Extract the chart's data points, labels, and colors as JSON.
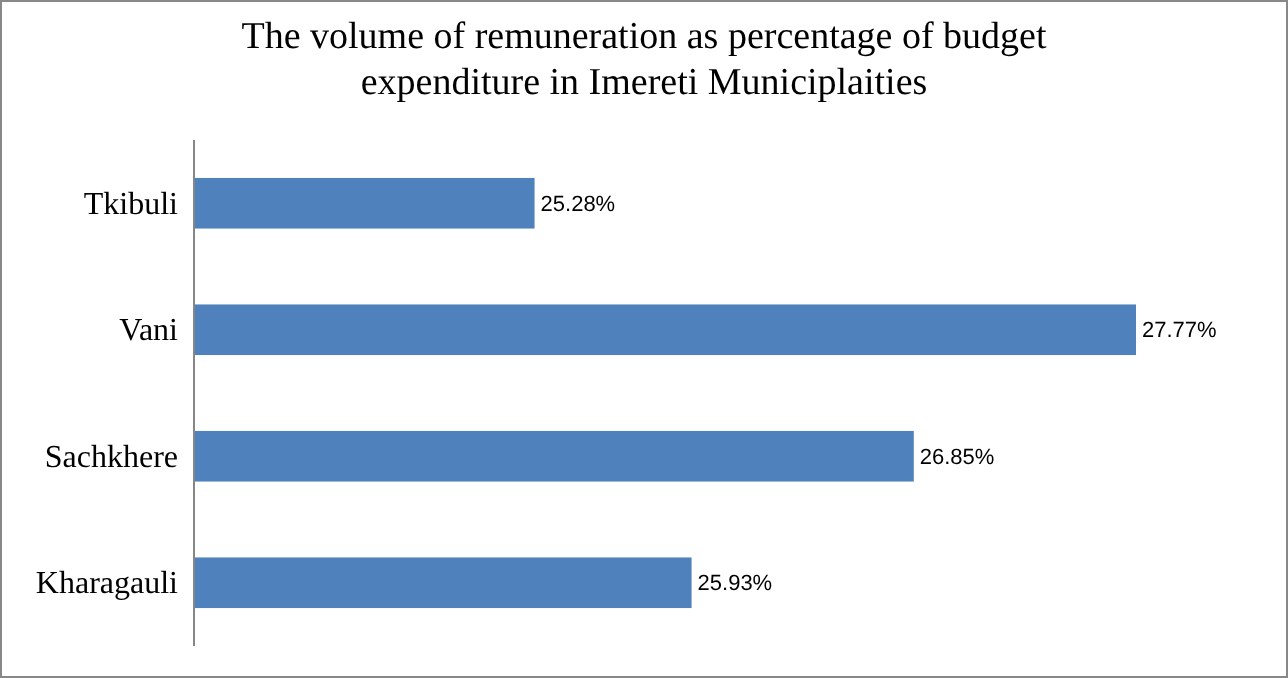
{
  "chart_data": {
    "type": "bar",
    "orientation": "horizontal",
    "title": "The volume of remuneration as percentage of budget expenditure in Imereti Municiplaities",
    "categories": [
      "Tkibuli",
      "Vani",
      "Sachkhere",
      "Kharagauli"
    ],
    "values": [
      25.28,
      27.77,
      26.85,
      25.93
    ],
    "value_labels": [
      "25.28%",
      "27.77%",
      "26.85%",
      "25.93%"
    ],
    "color": "#4f81bd",
    "xlim": [
      23.87,
      27.77
    ],
    "tick_labels": "y"
  }
}
